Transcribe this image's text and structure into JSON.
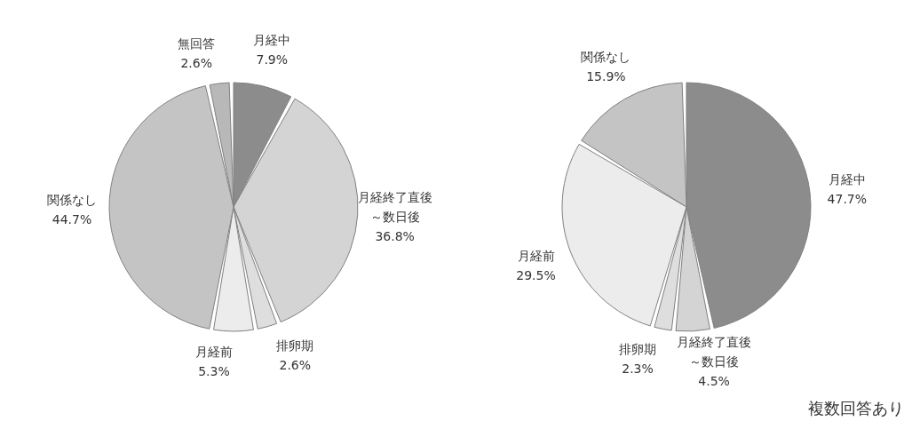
{
  "chart_data": [
    {
      "type": "pie",
      "categories": [
        "月経中",
        "月経終了直後～数日後",
        "排卵期",
        "月経前",
        "関係なし",
        "無回答"
      ],
      "values": [
        7.9,
        36.8,
        2.6,
        5.3,
        44.7,
        2.6
      ],
      "value_labels": [
        "7.9%",
        "36.8%",
        "2.6%",
        "5.3%",
        "44.7%",
        "2.6%"
      ],
      "colors": [
        "#8c8c8c",
        "#d4d4d4",
        "#dedede",
        "#ececec",
        "#c4c4c4",
        "#b8b8b8"
      ],
      "legend": false
    },
    {
      "type": "pie",
      "categories": [
        "月経中",
        "月経終了直後～数日後",
        "排卵期",
        "月経前",
        "関係なし"
      ],
      "values": [
        47.7,
        4.5,
        2.3,
        29.5,
        15.9
      ],
      "value_labels": [
        "47.7%",
        "4.5%",
        "2.3%",
        "29.5%",
        "15.9%"
      ],
      "colors": [
        "#8c8c8c",
        "#d4d4d4",
        "#dedede",
        "#ececec",
        "#c4c4c4"
      ],
      "legend": false,
      "annotations": [
        "複数回答あり"
      ]
    }
  ]
}
